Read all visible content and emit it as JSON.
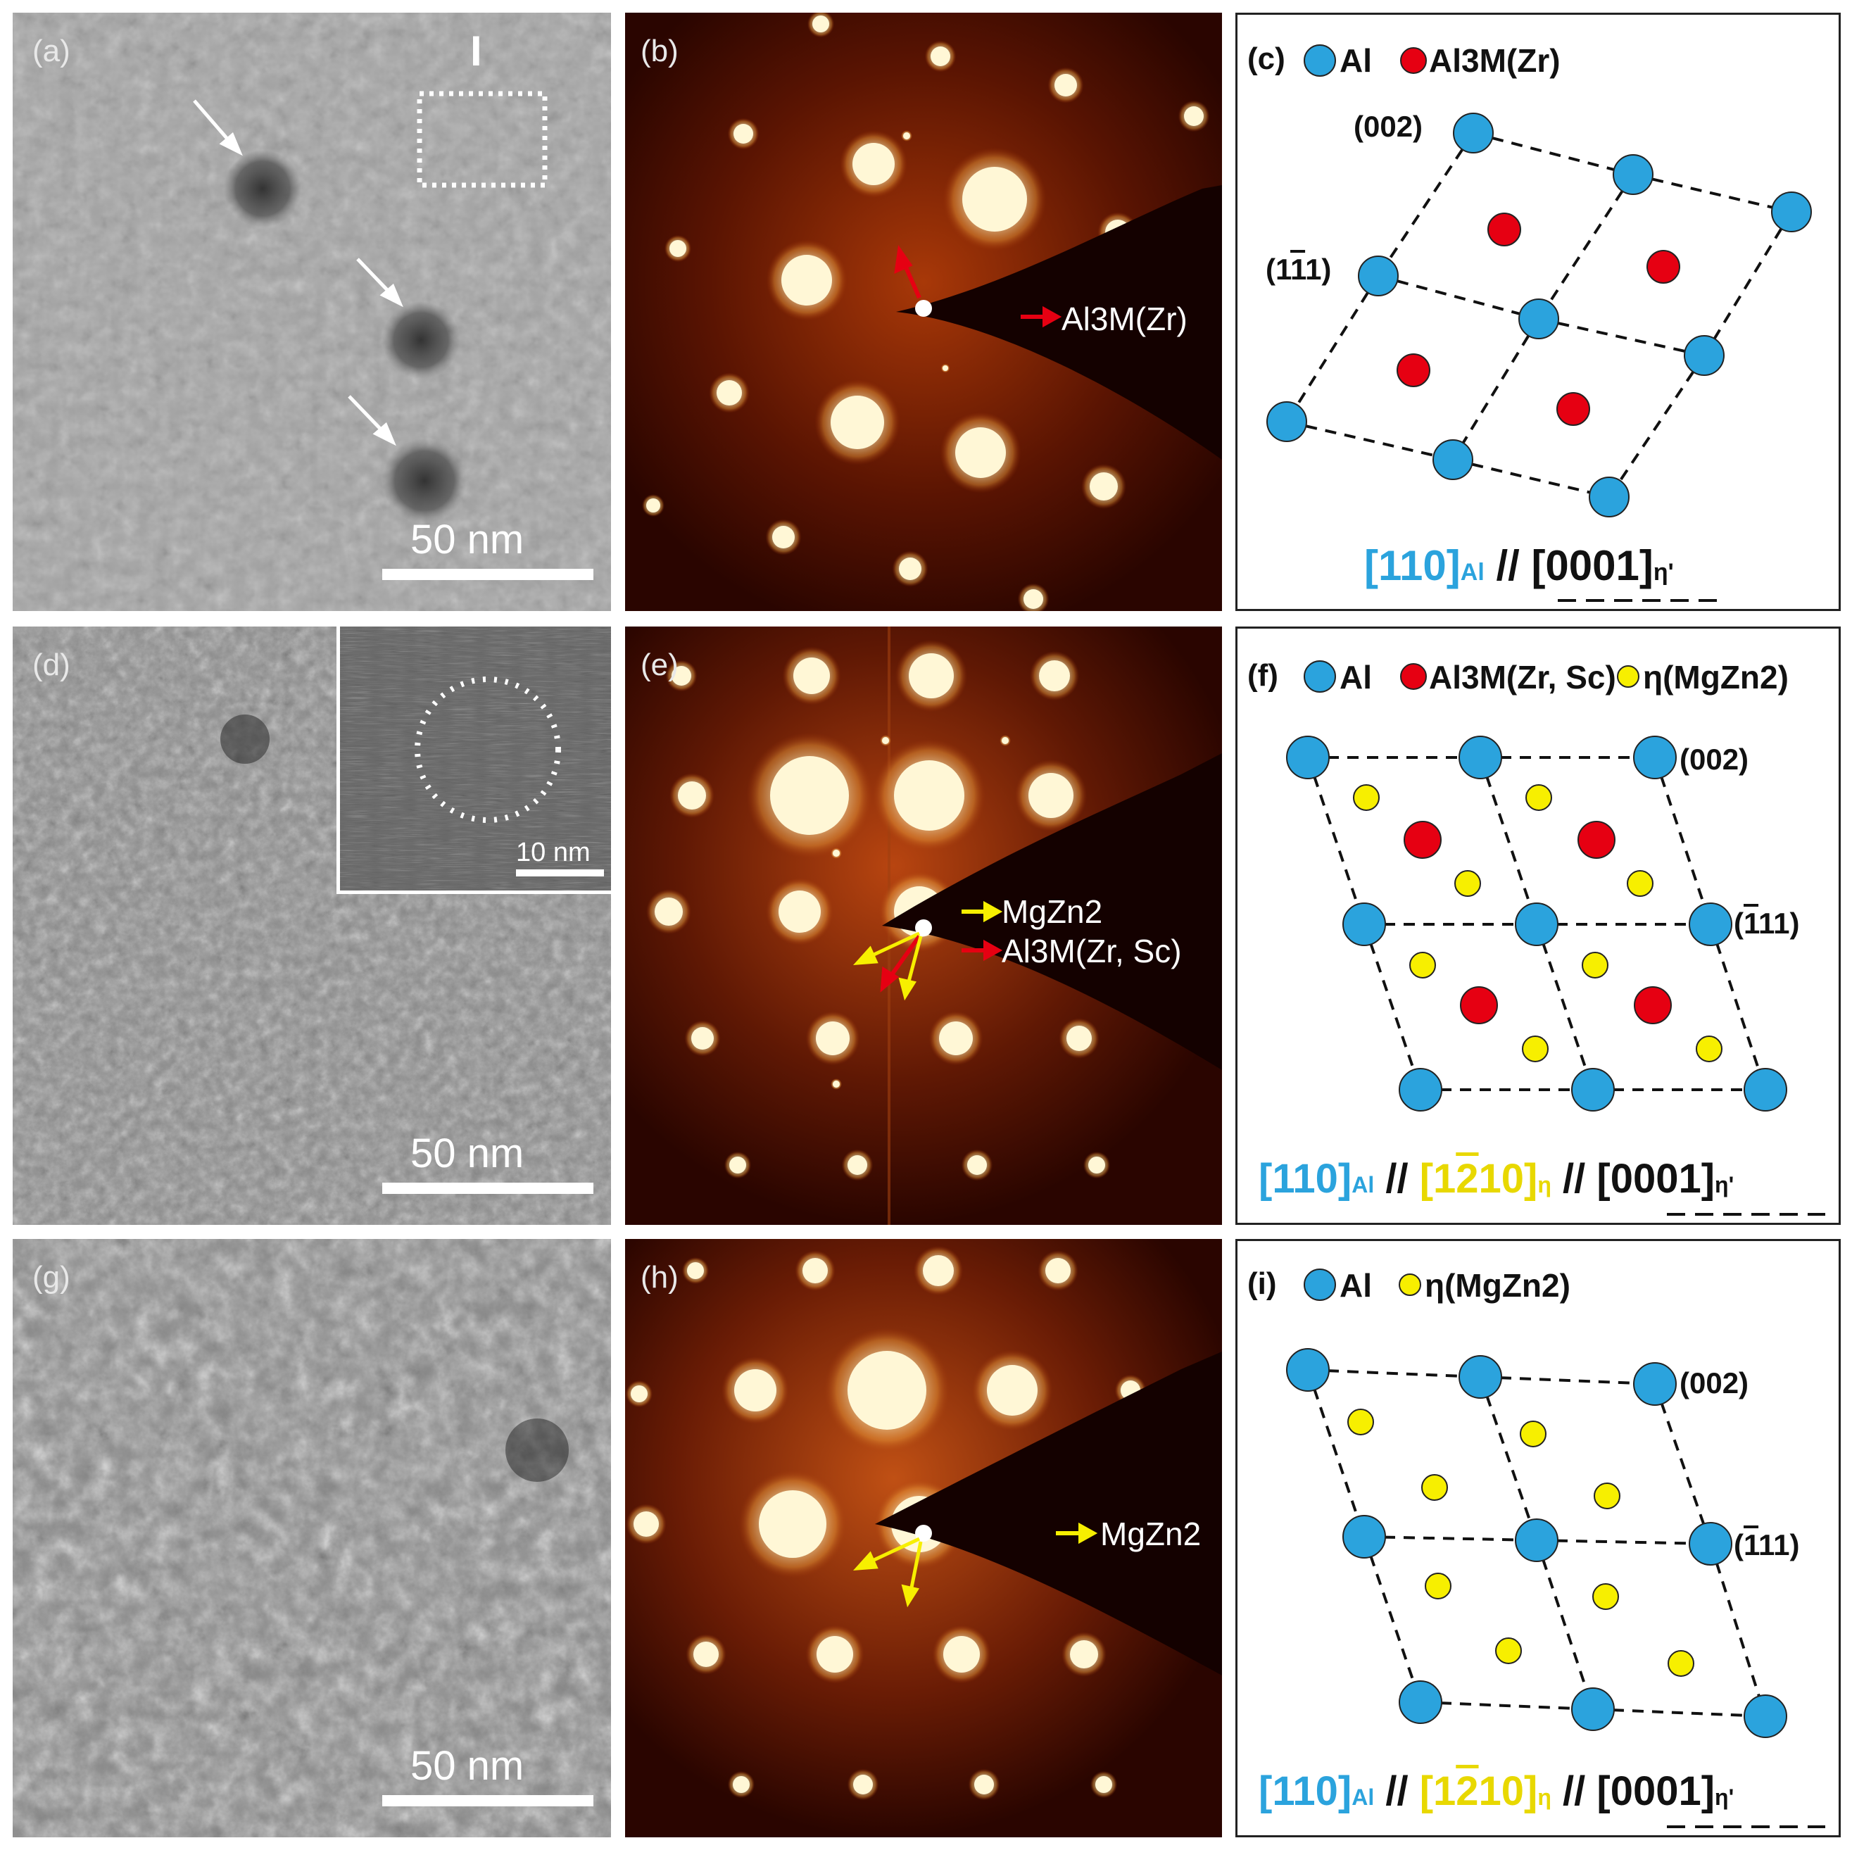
{
  "panels": {
    "a": {
      "label": "(a)",
      "scale": "50 nm",
      "region_label": "I"
    },
    "b": {
      "label": "(b)",
      "annotation": "Al3M(Zr)"
    },
    "c": {
      "label": "(c)",
      "legend": [
        "Al",
        "Al3M(Zr)"
      ],
      "plane1": "(002)",
      "plane2": "(1",
      "plane2_bar": "1",
      "plane2_tail": "1)",
      "orientation_al": "[110]",
      "orientation_al_sub": "Al",
      "orientation_sep": "//",
      "orientation_eta": "[0001]",
      "orientation_eta_sub": "η'"
    },
    "d": {
      "label": "(d)",
      "scale": "50 nm",
      "inset_scale": "10 nm"
    },
    "e": {
      "label": "(e)",
      "annotation1": "MgZn2",
      "annotation2": "Al3M(Zr, Sc)"
    },
    "f": {
      "label": "(f)",
      "legend": [
        "Al",
        "Al3M(Zr, Sc)",
        "η(MgZn2)"
      ],
      "plane1": "(002)",
      "plane2": "(",
      "plane2_bar": "1",
      "plane2_tail": "11)",
      "orientation_al": "[110]",
      "orientation_al_sub": "Al",
      "orientation_sep": "//",
      "orientation_mid": "[1",
      "orientation_mid_bar": "2",
      "orientation_mid_tail": "10]",
      "orientation_mid_sub": "η",
      "orientation_eta": "[0001]",
      "orientation_eta_sub": "η'"
    },
    "g": {
      "label": "(g)",
      "scale": "50 nm"
    },
    "h": {
      "label": "(h)",
      "annotation": "MgZn2"
    },
    "i": {
      "label": "(i)",
      "legend": [
        "Al",
        "η(MgZn2)"
      ],
      "plane1": "(002)",
      "plane2": "(",
      "plane2_bar": "1",
      "plane2_tail": "11)",
      "orientation_al": "[110]",
      "orientation_al_sub": "Al",
      "orientation_sep": "//",
      "orientation_mid": "[1",
      "orientation_mid_bar": "2",
      "orientation_mid_tail": "10]",
      "orientation_mid_sub": "η",
      "orientation_eta": "[0001]",
      "orientation_eta_sub": "η'"
    }
  },
  "colors": {
    "al": "#2ba3dd",
    "al3m": "#e60012",
    "eta": "#f7ef00",
    "arrow_red": "#e60012",
    "arrow_yellow": "#f7ef00",
    "saed_bg": "#2a0500",
    "spot": "#fff6d0"
  }
}
